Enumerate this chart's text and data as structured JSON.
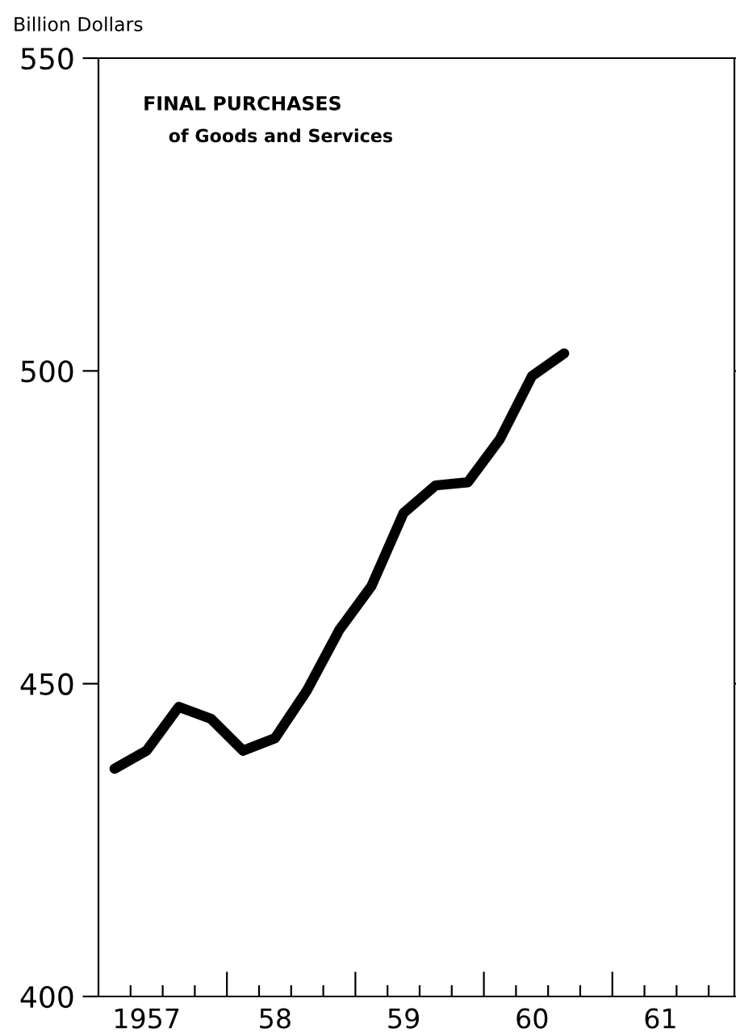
{
  "chart_data": {
    "type": "line",
    "title": "FINAL PURCHASES",
    "subtitle": "of Goods and Services",
    "ylabel": "Billion Dollars",
    "categories": [
      null,
      "1957",
      null,
      null,
      null,
      "58",
      null,
      null,
      null,
      "59",
      null,
      null,
      null,
      "60",
      null,
      null,
      null,
      "61",
      null,
      null
    ],
    "series": [
      {
        "color": "#000000",
        "values": [
          436.4,
          439.3,
          446.3,
          444.4,
          439.3,
          441.3,
          449,
          458.6,
          465.6,
          477.3,
          481.7,
          482.2,
          489.1,
          499.2,
          502.8,
          null,
          null,
          null,
          null,
          null
        ]
      }
    ],
    "ylim": [
      400,
      550
    ],
    "yticks": [
      400,
      450,
      500,
      550
    ],
    "grid": false,
    "legend": false,
    "marker": "none",
    "line_style": "solid"
  }
}
